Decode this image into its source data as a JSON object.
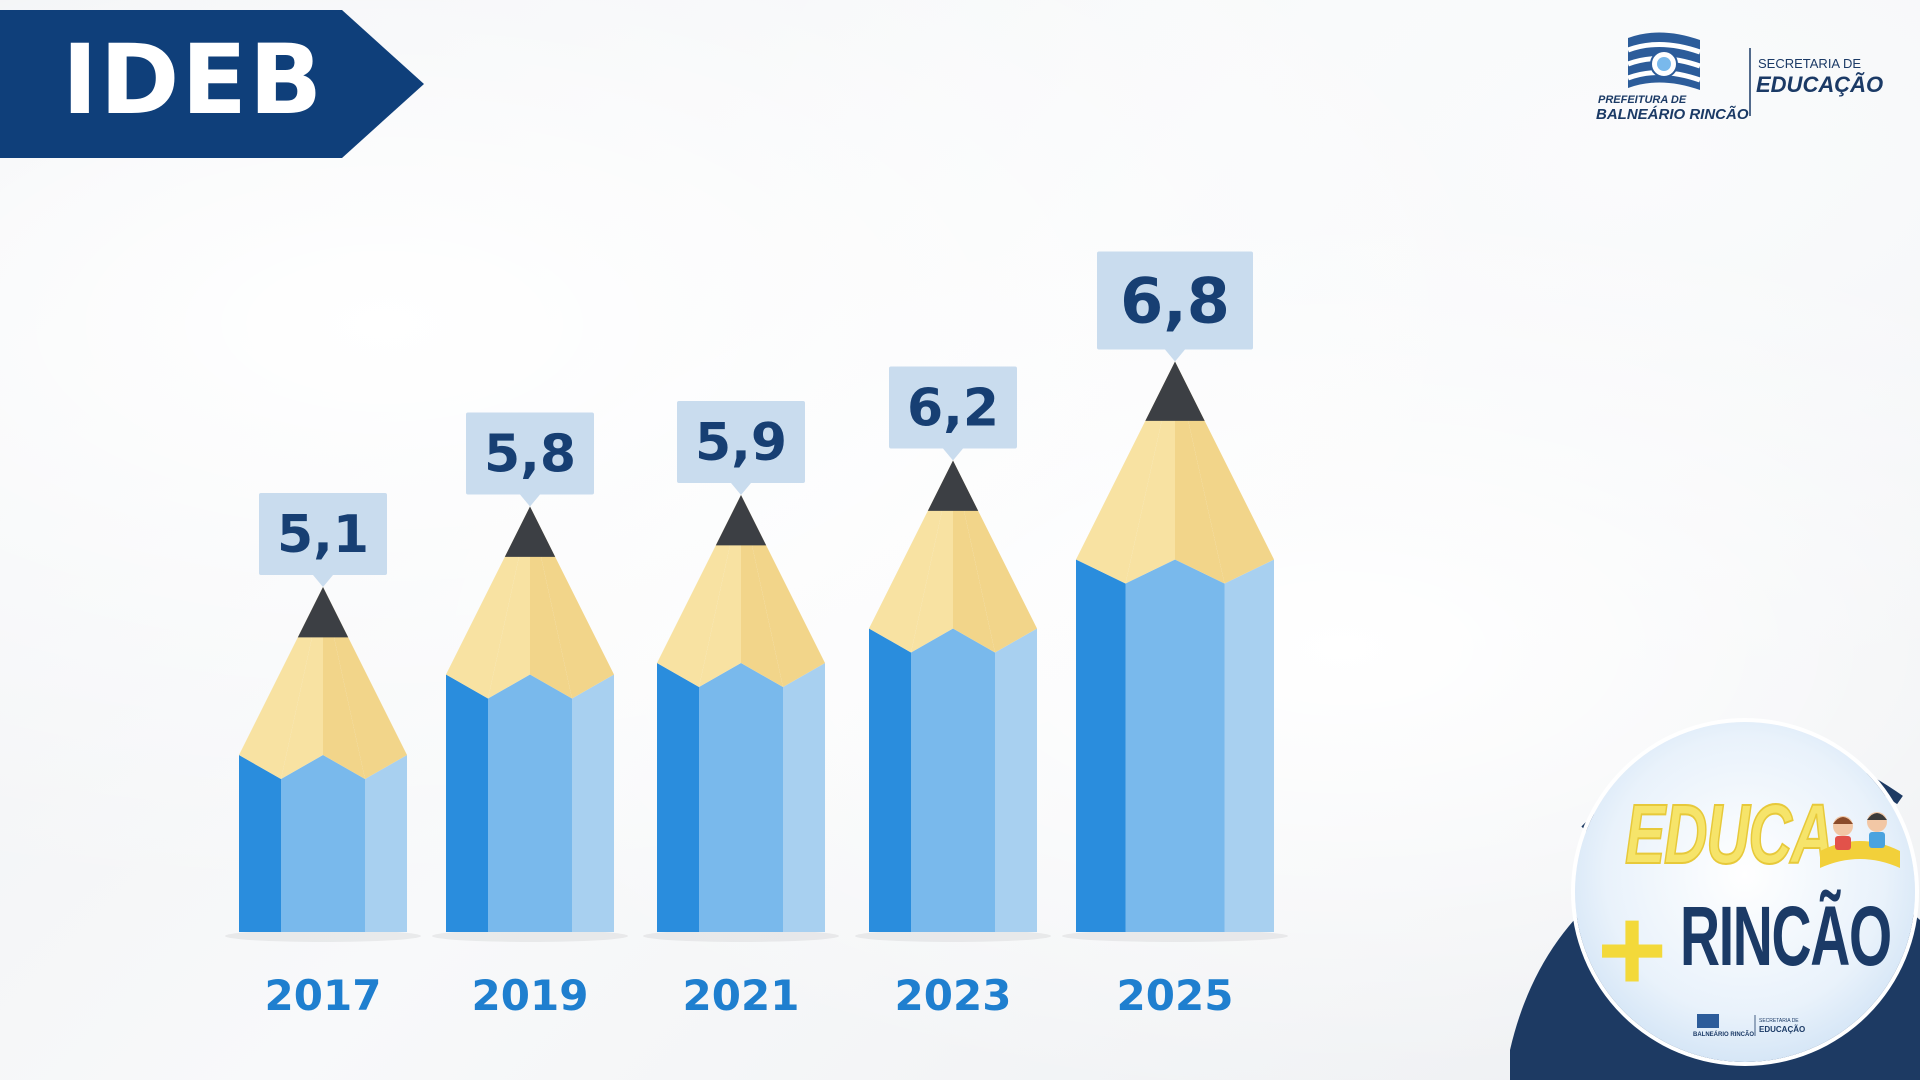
{
  "header": {
    "title": "IDEB",
    "banner_color": "#0f3f7a"
  },
  "logo": {
    "prefeitura_line1": "PREFEITURA DE",
    "prefeitura_line2": "BALNEÁRIO RINCÃO",
    "secretaria_line1": "SECRETARIA DE",
    "secretaria_line2": "EDUCAÇÃO",
    "icon": "city-flag-icon"
  },
  "badge": {
    "line1": "EDUCA",
    "plus": "+",
    "line2": "RINCÃO",
    "mini_line1": "SECRETARIA DE",
    "mini_line2": "EDUCAÇÃO",
    "mini_line3": "BALNEÁRIO RINCÃO",
    "icon": "kids-reading-book-icon"
  },
  "chart_data": {
    "type": "bar",
    "categories": [
      "2017",
      "2019",
      "2021",
      "2023",
      "2025"
    ],
    "values": [
      5.1,
      5.8,
      5.9,
      6.2,
      6.8
    ],
    "value_labels": [
      "5,1",
      "5,8",
      "5,9",
      "6,2",
      "6,8"
    ],
    "title": "IDEB",
    "xlabel": "",
    "ylabel": "",
    "grid": false,
    "bar_style": "pencil",
    "colors": {
      "pencil_dark": "#2a8ddd",
      "pencil_mid": "#79b9ec",
      "pencil_light": "#a8d0f0",
      "wood": "#f8e2a2",
      "wood_dark": "#f2d58a",
      "tip": "#3c3f44",
      "label_box": "#c9dcee",
      "label_text": "#173f73",
      "year_text": "#1f7fcf"
    }
  }
}
